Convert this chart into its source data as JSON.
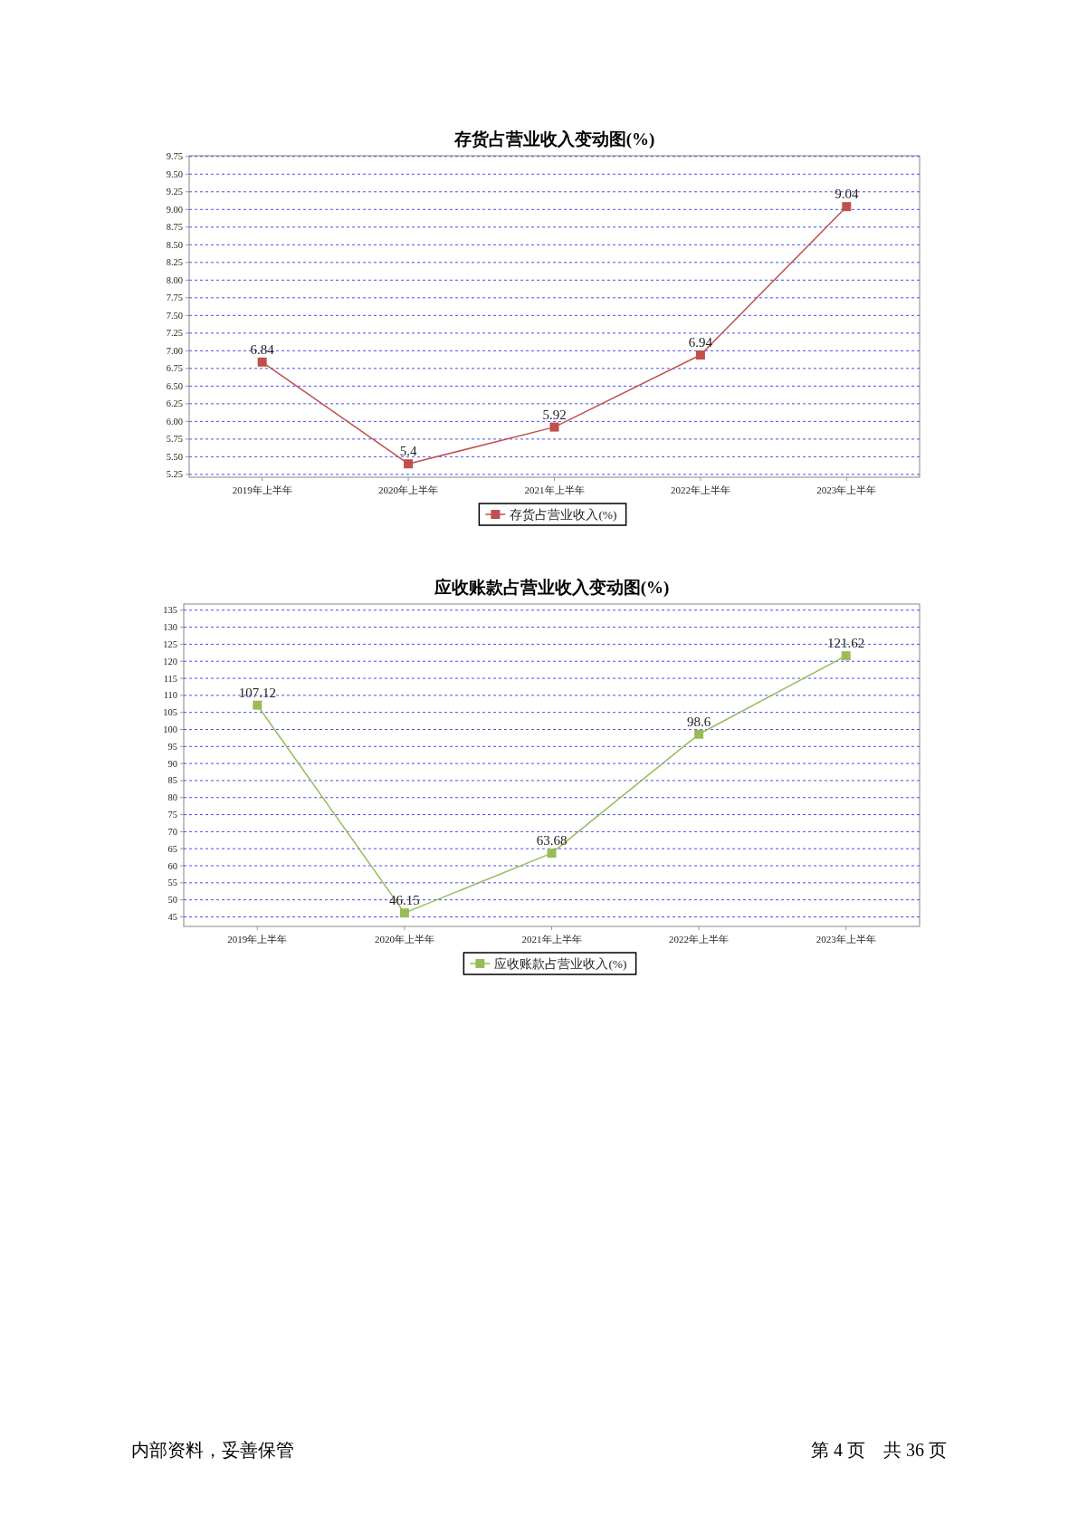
{
  "chart_data": [
    {
      "type": "line",
      "title": "存货占营业收入变动图(%)",
      "categories": [
        "2019年上半年",
        "2020年上半年",
        "2021年上半年",
        "2022年上半年",
        "2023年上半年"
      ],
      "series": [
        {
          "name": "存货占营业收入(%)",
          "color": "#c0504d",
          "values": [
            6.84,
            5.4,
            5.92,
            6.94,
            9.04
          ]
        }
      ],
      "ylim": [
        5.21,
        9.76
      ],
      "yticks": [
        {
          "value": 5.25,
          "label": "5.25"
        },
        {
          "value": 5.5,
          "label": "5.50"
        },
        {
          "value": 5.75,
          "label": "5.75"
        },
        {
          "value": 6,
          "label": "6.00"
        },
        {
          "value": 6.25,
          "label": "6.25"
        },
        {
          "value": 6.5,
          "label": "6.50"
        },
        {
          "value": 6.75,
          "label": "6.75"
        },
        {
          "value": 7,
          "label": "7.00"
        },
        {
          "value": 7.25,
          "label": "7.25"
        },
        {
          "value": 7.5,
          "label": "7.50"
        },
        {
          "value": 7.75,
          "label": "7.75"
        },
        {
          "value": 8,
          "label": "8.00"
        },
        {
          "value": 8.25,
          "label": "8.25"
        },
        {
          "value": 8.5,
          "label": "8.50"
        },
        {
          "value": 8.75,
          "label": "8.75"
        },
        {
          "value": 9,
          "label": "9.00"
        },
        {
          "value": 9.25,
          "label": "9.25"
        },
        {
          "value": 9.5,
          "label": "9.50"
        },
        {
          "value": 9.75,
          "label": "9.75"
        }
      ],
      "grid": "y",
      "legend": "bottom",
      "marker": "square",
      "data_labels": true
    },
    {
      "type": "line",
      "title": "应收账款占营业收入变动图(%)",
      "categories": [
        "2019年上半年",
        "2020年上半年",
        "2021年上半年",
        "2022年上半年",
        "2023年上半年"
      ],
      "series": [
        {
          "name": "应收账款占营业收入(%)",
          "color": "#9bbb59",
          "values": [
            107.12,
            46.15,
            63.68,
            98.6,
            121.62
          ]
        }
      ],
      "ylim": [
        42.2,
        136.8
      ],
      "yticks": [
        45,
        50,
        55,
        60,
        65,
        70,
        75,
        80,
        85,
        90,
        95,
        100,
        105,
        110,
        115,
        120,
        125,
        130,
        135
      ],
      "grid": "y",
      "legend": "bottom",
      "marker": "square",
      "data_labels": true,
      "annotations": [
        "内部资料，妥善保管",
        "第 4 页　共 36 页"
      ]
    }
  ]
}
